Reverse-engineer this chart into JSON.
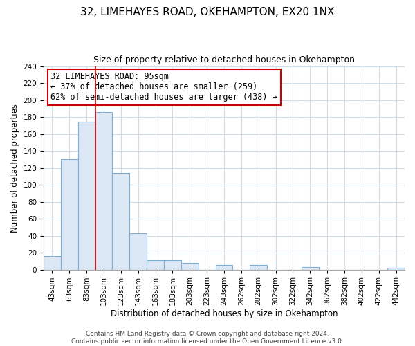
{
  "title": "32, LIMEHAYES ROAD, OKEHAMPTON, EX20 1NX",
  "subtitle": "Size of property relative to detached houses in Okehampton",
  "xlabel": "Distribution of detached houses by size in Okehampton",
  "ylabel": "Number of detached properties",
  "bar_labels": [
    "43sqm",
    "63sqm",
    "83sqm",
    "103sqm",
    "123sqm",
    "143sqm",
    "163sqm",
    "183sqm",
    "203sqm",
    "223sqm",
    "243sqm",
    "262sqm",
    "282sqm",
    "302sqm",
    "322sqm",
    "342sqm",
    "362sqm",
    "382sqm",
    "402sqm",
    "422sqm",
    "442sqm"
  ],
  "bar_values": [
    16,
    130,
    174,
    186,
    114,
    43,
    11,
    11,
    8,
    0,
    5,
    0,
    5,
    0,
    0,
    3,
    0,
    0,
    0,
    0,
    2
  ],
  "bar_color": "#dce8f5",
  "bar_edge_color": "#7bafd4",
  "vline_color": "#cc0000",
  "vline_x_index": 2.5,
  "annotation_title": "32 LIMEHAYES ROAD: 95sqm",
  "annotation_line1": "← 37% of detached houses are smaller (259)",
  "annotation_line2": "62% of semi-detached houses are larger (438) →",
  "annotation_box_color": "#ffffff",
  "annotation_box_edge": "#cc0000",
  "ylim": [
    0,
    240
  ],
  "yticks": [
    0,
    20,
    40,
    60,
    80,
    100,
    120,
    140,
    160,
    180,
    200,
    220,
    240
  ],
  "footer_line1": "Contains HM Land Registry data © Crown copyright and database right 2024.",
  "footer_line2": "Contains public sector information licensed under the Open Government Licence v3.0.",
  "bg_color": "#ffffff",
  "plot_bg_color": "#ffffff",
  "grid_color": "#d0dce8",
  "title_fontsize": 11,
  "subtitle_fontsize": 9,
  "axis_label_fontsize": 8.5,
  "tick_fontsize": 7.5,
  "footer_fontsize": 6.5,
  "annotation_fontsize": 8.5
}
